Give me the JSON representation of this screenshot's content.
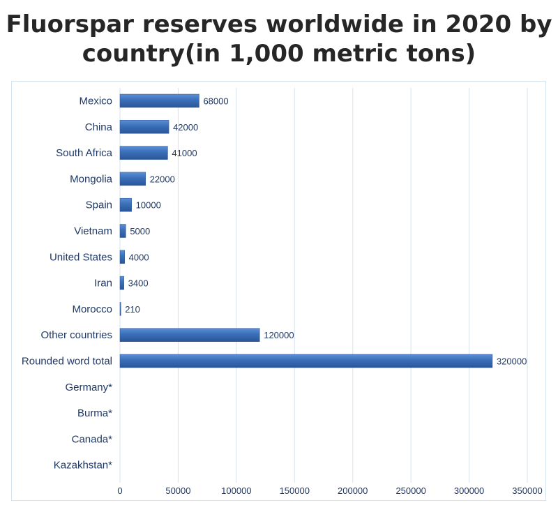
{
  "chart_data": {
    "type": "bar",
    "orientation": "horizontal",
    "title_line1": "Fluorspar reserves worldwide in 2020 by",
    "title_line2": "country(in 1,000 metric tons)",
    "categories": [
      "Mexico",
      "China",
      "South Africa",
      "Mongolia",
      "Spain",
      "Vietnam",
      "United States",
      "Iran",
      "Morocco",
      "Other countries",
      "Rounded word total",
      "Germany*",
      "Burma*",
      "Canada*",
      "Kazakhstan*"
    ],
    "values": [
      68000,
      42000,
      41000,
      22000,
      10000,
      5000,
      4000,
      3400,
      210,
      120000,
      320000,
      null,
      null,
      null,
      null
    ],
    "data_labels": [
      "68000",
      "42000",
      "41000",
      "22000",
      "10000",
      "5000",
      "4000",
      "3400",
      "210",
      "120000",
      "320000",
      "",
      "",
      "",
      ""
    ],
    "xlim": [
      0,
      350000
    ],
    "x_ticks": [
      0,
      50000,
      100000,
      150000,
      200000,
      250000,
      300000,
      350000
    ],
    "x_tick_labels": [
      "0",
      "50000",
      "100000",
      "150000",
      "200000",
      "250000",
      "300000",
      "350000"
    ],
    "grid": true,
    "legend": "none",
    "bar_color": "#3a6fb8",
    "grid_color": "#d5e3ee",
    "text_color": "#1f3864"
  }
}
